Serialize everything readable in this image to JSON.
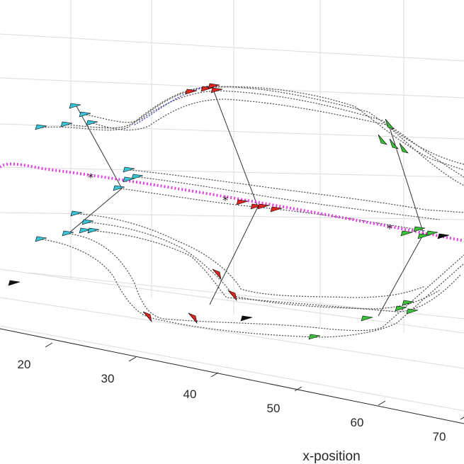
{
  "chart_data": {
    "type": "scatter",
    "title": "",
    "xlabel": "x-position",
    "x_ticks": [
      "20",
      "30",
      "40",
      "50",
      "60",
      "70"
    ],
    "colors": {
      "cyan_agents": "#38c6d6",
      "red_agents": "#e0241e",
      "green_agents": "#38c23a",
      "target_path": "#e040e0",
      "trajectories": "#555555"
    },
    "series": [
      {
        "group": "cyan",
        "points": [
          [
            60,
            180
          ],
          [
            96,
            176
          ],
          [
            108,
            150
          ],
          [
            122,
            162
          ],
          [
            132,
            174
          ],
          [
            184,
            240
          ],
          [
            196,
            250
          ],
          [
            184,
            254
          ],
          [
            170,
            266
          ],
          [
            110,
            302
          ],
          [
            126,
            314
          ],
          [
            122,
            326
          ],
          [
            134,
            326
          ],
          [
            98,
            330
          ],
          [
            60,
            338
          ]
        ]
      },
      {
        "group": "red",
        "points": [
          [
            272,
            130
          ],
          [
            294,
            126
          ],
          [
            304,
            122
          ],
          [
            308,
            128
          ],
          [
            344,
            286
          ],
          [
            364,
            292
          ],
          [
            374,
            292
          ],
          [
            392,
            296
          ],
          [
            308,
            388
          ],
          [
            330,
            418
          ],
          [
            274,
            450
          ],
          [
            210,
            448
          ]
        ]
      },
      {
        "group": "green",
        "points": [
          [
            550,
            178
          ],
          [
            540,
            200
          ],
          [
            556,
            206
          ],
          [
            570,
            212
          ],
          [
            594,
            324
          ],
          [
            576,
            330
          ],
          [
            612,
            330
          ],
          [
            600,
            334
          ],
          [
            578,
            428
          ],
          [
            568,
            436
          ],
          [
            584,
            440
          ],
          [
            520,
            450
          ],
          [
            446,
            476
          ]
        ]
      },
      {
        "group": "black",
        "points": [
          [
            22,
            400
          ],
          [
            350,
            450
          ],
          [
            628,
            334
          ]
        ]
      }
    ]
  }
}
